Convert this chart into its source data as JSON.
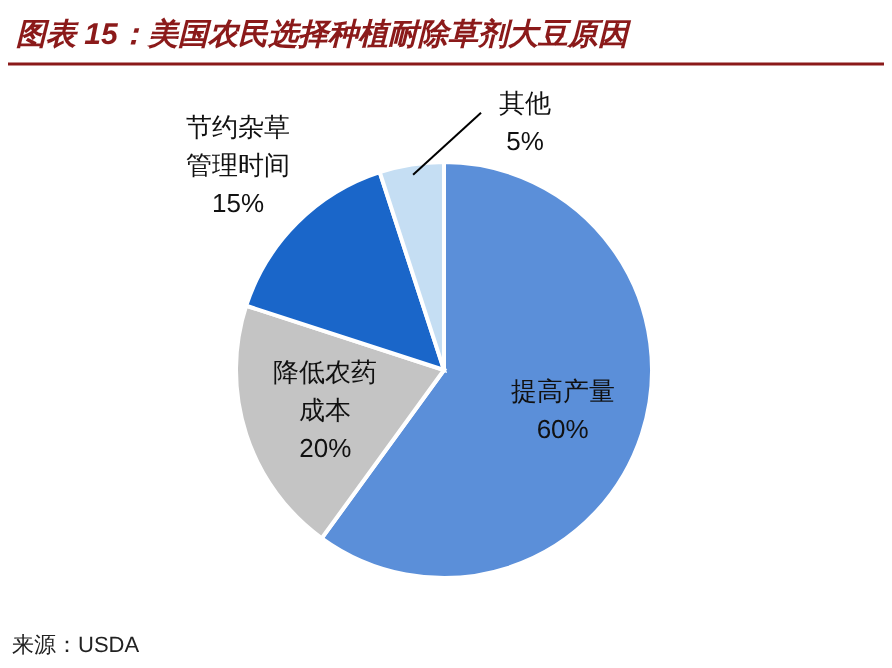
{
  "chart_data": {
    "type": "pie",
    "title": "图表 15：美国农民选择种植耐除草剂大豆原因",
    "categories": [
      "提高产量",
      "降低农药成本",
      "节约杂草管理时间",
      "其他"
    ],
    "values": [
      60,
      20,
      15,
      5
    ],
    "colors": [
      "#5b8fd9",
      "#c4c4c4",
      "#1a66c9",
      "#c5def3"
    ],
    "value_labels": [
      "60%",
      "20%",
      "15%",
      "5%"
    ],
    "annotations": [
      "来源：USDA"
    ]
  }
}
